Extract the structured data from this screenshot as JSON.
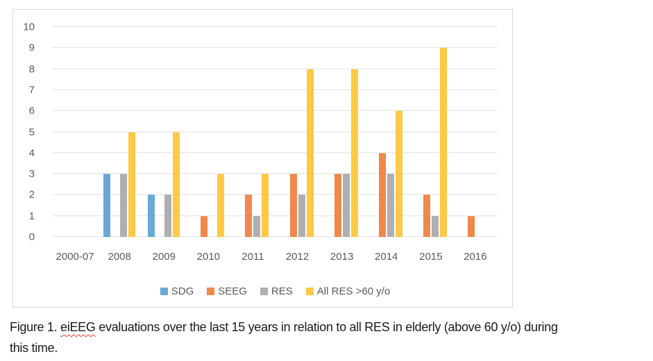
{
  "colors": {
    "sdg_blue": "#68A9D8",
    "seeg_orange": "#F0884C",
    "res_gray": "#AFAFAF",
    "allres_yellow": "#FFC845",
    "gridline": "#E2E2E2",
    "axis_text": "#595959",
    "chart_border": "#D8D8D8",
    "caption_text": "#1A1A1A",
    "squiggle_red": "#E03C31"
  },
  "chart_data": {
    "type": "bar",
    "title": "",
    "xlabel": "",
    "ylabel": "",
    "categories": [
      "2000-07",
      "2008",
      "2009",
      "2010",
      "2011",
      "2012",
      "2013",
      "2014",
      "2015",
      "2016"
    ],
    "series": [
      {
        "name": "SDG",
        "color_key": "sdg_blue",
        "values": [
          0,
          3,
          2,
          0,
          0,
          0,
          0,
          0,
          0,
          0
        ]
      },
      {
        "name": "SEEG",
        "color_key": "seeg_orange",
        "values": [
          0,
          0,
          0,
          1,
          2,
          3,
          3,
          4,
          2,
          1
        ]
      },
      {
        "name": "RES",
        "color_key": "res_gray",
        "values": [
          0,
          3,
          2,
          0,
          1,
          2,
          3,
          3,
          1,
          0
        ]
      },
      {
        "name": "All RES >60 y/o",
        "color_key": "allres_yellow",
        "values": [
          0,
          5,
          5,
          3,
          3,
          8,
          8,
          6,
          9,
          0
        ]
      }
    ],
    "ylim": [
      0,
      10
    ],
    "yticks": [
      0,
      1,
      2,
      3,
      4,
      5,
      6,
      7,
      8,
      9,
      10
    ],
    "grid": true,
    "legend_position": "bottom"
  },
  "caption": {
    "line1_prefix": "Figure 1. ",
    "flagged_word": "eiEEG",
    "line1_rest": " evaluations over the last 15 years in relation to all RES in elderly (above 60 y/o) during",
    "line2": "this time."
  }
}
